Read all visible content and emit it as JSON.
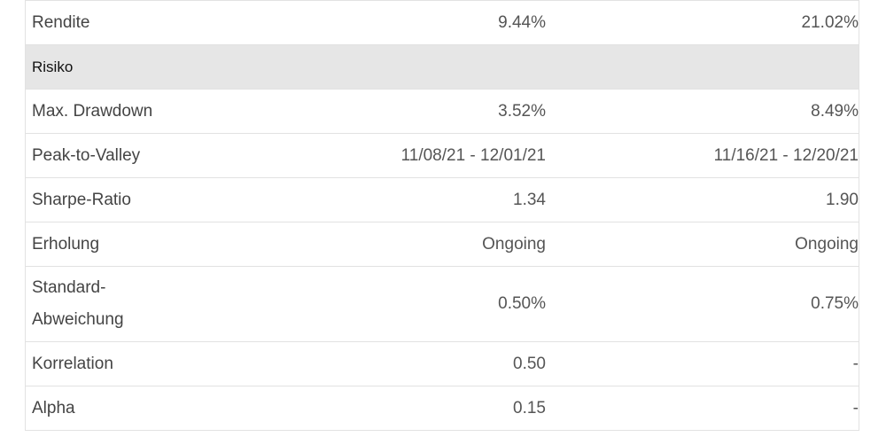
{
  "table": {
    "rows": [
      [
        "Rendite",
        "9.44%",
        "21.02%"
      ],
      [
        "Risiko"
      ],
      [
        "Max. Drawdown",
        "3.52%",
        "8.49%"
      ],
      [
        "Peak-to-Valley",
        "11/08/21 - 12/01/21",
        "11/16/21 - 12/20/21"
      ],
      [
        "Sharpe-Ratio",
        "1.34",
        "1.90"
      ],
      [
        "Erholung",
        "Ongoing",
        "Ongoing"
      ],
      [
        "Standard-Abweichung",
        "0.50%",
        "0.75%"
      ],
      [
        "Korrelation",
        "0.50",
        "-"
      ],
      [
        "Alpha",
        "0.15",
        "-"
      ]
    ]
  }
}
